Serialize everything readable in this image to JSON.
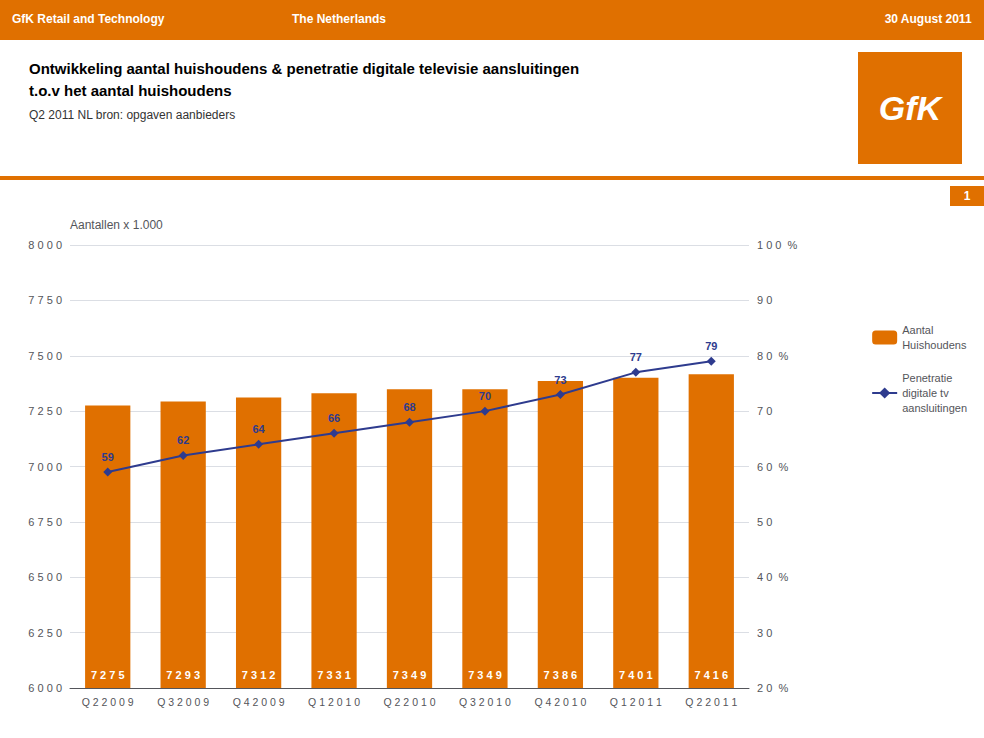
{
  "chart_data": {
    "type": "bar",
    "title": "Ontwikkeling aantal huishoudens & penetratie digitale televisie aansluitingen\nt.o.v het aantal huishoudens",
    "subtitle": "Q2 2011 NL bron: opgaven aanbieders",
    "y_label": "Aantallen x 1.000",
    "annotations": [
      "GfK Retail and Technology",
      "The Netherlands",
      "30 August 2011",
      "GfK",
      "1"
    ],
    "categories": [
      "Q 2 2 0 0 9",
      "Q 3 2 0 0 9",
      "Q 4 2 0 0 9",
      "Q 1 2 0 1 0",
      "Q 2 2 0 1 0",
      "Q 3 2 0 1 0",
      "Q 4 2 0 1 0",
      "Q 1 2 0 1 1",
      "Q 2 2 0 1 1"
    ],
    "series": [
      {
        "name": "Aantal\nHuishoudens",
        "type": "bar",
        "color": "#E07000",
        "values": [
          7275,
          7293,
          7312,
          7331,
          7349,
          7349,
          7386,
          7401,
          7416
        ],
        "value_labels": [
          "7 2 7 5",
          "7 2 9 3",
          "7 3 1 2",
          "7 3 3 1",
          "7 3 4 9",
          "7 3 4 9",
          "7 3 8 6",
          "7 4 0 1",
          "7 4 1 6"
        ]
      },
      {
        "name": "Penetratie\ndigitale tv\naansluitingen",
        "type": "line",
        "color": "#2E3B8E",
        "axis": "y2",
        "marker": "diamond",
        "values": [
          59,
          62,
          64,
          66,
          68,
          70,
          73,
          77,
          79
        ]
      }
    ],
    "ylim": [
      6000,
      8000
    ],
    "yticks": [
      {
        "value": 6000,
        "label": "6 0 0 0"
      },
      {
        "value": 6250,
        "label": "6 2 5 0"
      },
      {
        "value": 6500,
        "label": "6 5 0 0"
      },
      {
        "value": 6750,
        "label": "6 7 5 0"
      },
      {
        "value": 7000,
        "label": "7 0 0 0"
      },
      {
        "value": 7250,
        "label": "7 2 5 0"
      },
      {
        "value": 7500,
        "label": "7 5 0 0"
      },
      {
        "value": 7750,
        "label": "7 7 5 0"
      },
      {
        "value": 8000,
        "label": "8 0 0 0"
      }
    ],
    "y2lim": [
      20,
      100
    ],
    "y2ticks": [
      {
        "value": 20,
        "label": "2 0  %"
      },
      {
        "value": 30,
        "label": "3 0"
      },
      {
        "value": 40,
        "label": "4 0  %"
      },
      {
        "value": 50,
        "label": "5 0"
      },
      {
        "value": 60,
        "label": "6 0  %"
      },
      {
        "value": 70,
        "label": "7 0"
      },
      {
        "value": 80,
        "label": "8 0  %"
      },
      {
        "value": 90,
        "label": "9 0"
      },
      {
        "value": 100,
        "label": "1 0 0  %"
      }
    ],
    "grid": true,
    "legend": "right",
    "data_labels": true
  }
}
